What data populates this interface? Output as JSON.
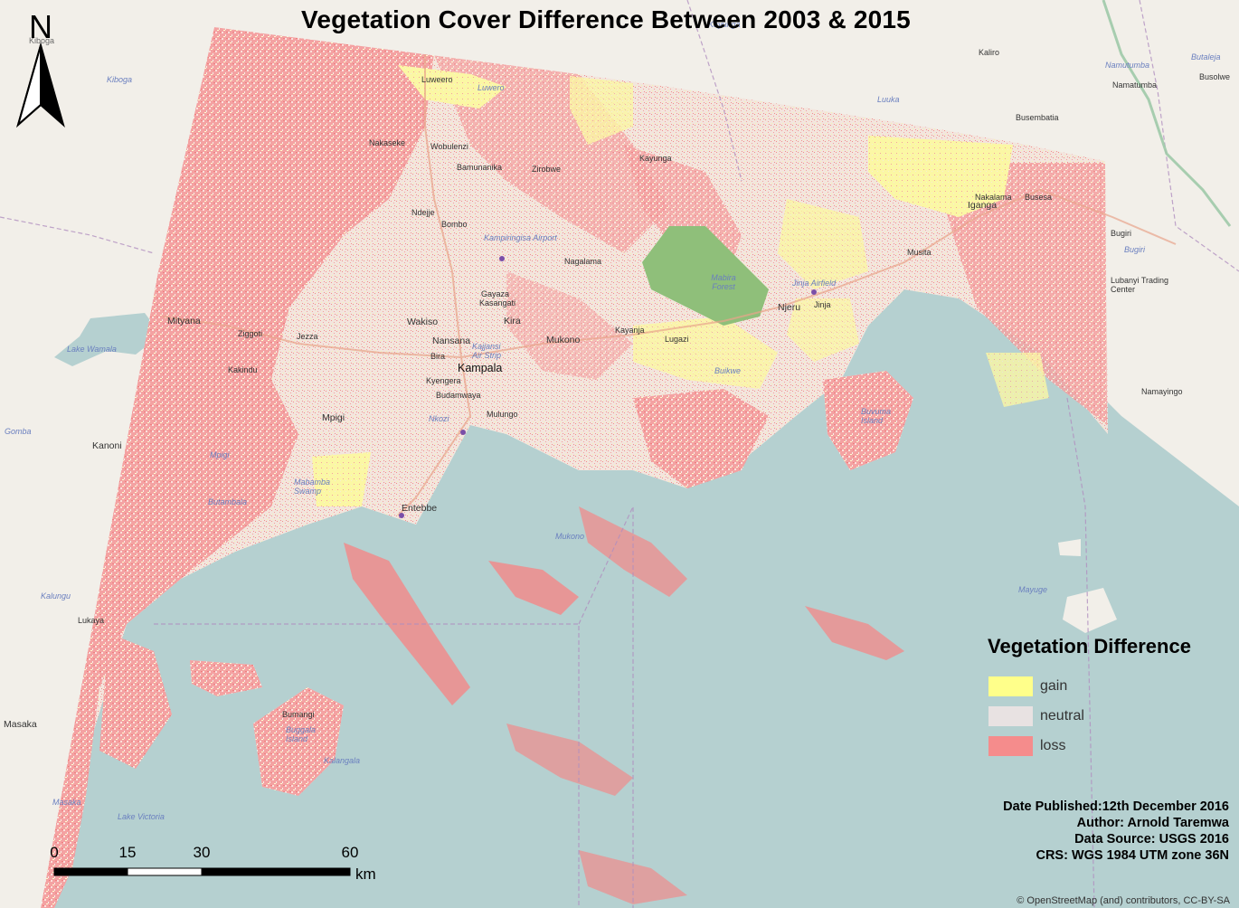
{
  "title": "Vegetation Cover Difference Between 2003 & 2015",
  "north_arrow": {
    "label": "N",
    "icon": "north-arrow-icon"
  },
  "legend": {
    "title": "Vegetation Difference",
    "items": [
      {
        "label": "gain",
        "color": "#ffff8a"
      },
      {
        "label": "neutral",
        "color": "#e8e2e2"
      },
      {
        "label": "loss",
        "color": "#f58c8c"
      }
    ]
  },
  "metadata": {
    "date_published": "Date Published:12th December 2016",
    "author": "Author: Arnold Taremwa",
    "data_source": "Data Source: USGS 2016",
    "crs": "CRS: WGS 1984 UTM zone 36N"
  },
  "scale_bar": {
    "ticks": [
      "0",
      "15",
      "30",
      "60"
    ],
    "unit": "km"
  },
  "attribution": "© OpenStreetMap (and) contributors, CC-BY-SA",
  "colors": {
    "lake": "#b5d0d0",
    "land": "#f2efe9",
    "loss": "#f58c8c",
    "gain": "#ffff8a",
    "forest": "#8fbf7a"
  },
  "places": {
    "kiboga_top": "Kiboga",
    "kiboga": "Kiboga",
    "luwero": "Luwero",
    "luwero2": "Luweero",
    "kayunga_r": "Kayunga",
    "kaliro": "Kaliro",
    "namutumba_r": "Namutumba",
    "namutumba": "Namatumba",
    "butaleja": "Butaleja",
    "busolwe": "Busolwe",
    "luuka": "Luuka",
    "busembatia": "Busembatia",
    "nakaseke": "Nakaseke",
    "wobulenzi": "Wobulenzi",
    "bamunanika": "Bamunanika",
    "zirobwe": "Zirobwe",
    "kayunga": "Kayunga",
    "nakalama": "Nakalama",
    "busesa": "Busesa",
    "iganga": "Iganga",
    "ndejje": "Ndejje",
    "bombo": "Bombo",
    "bugiri": "Bugiri",
    "bugiri_r": "Bugiri",
    "kampiringisa": "Kampiringisa Airport",
    "nagalama": "Nagalama",
    "mabira": "Mabira Forest",
    "musita": "Musita",
    "lubanyi": "Lubanyi Trading Center",
    "jinja_af": "Jinja Airfield",
    "njeru": "Njeru",
    "jinja": "Jinja",
    "mityana": "Mityana",
    "ziggoti": "Ziggoti",
    "gayaza": "Gayaza",
    "kasangati": "Kasangati",
    "kira": "Kira",
    "wakiso": "Wakiso",
    "nansana": "Nansana",
    "mukono": "Mukono",
    "kayanja": "Kayanja",
    "lugazi": "Lugazi",
    "buikwe": "Buikwe",
    "jeeza": "Jezza",
    "bira": "Bira",
    "kampala": "Kampala",
    "kajjansi": "Kajjansi Air Strip",
    "kyengera": "Kyengera",
    "buddo": "Budamwaya",
    "lake_wamala": "Lake Wamala",
    "kakindu": "Kakindu",
    "mpigi": "Mpigi",
    "mulungo": "Mulungo",
    "nkozi": "Nkozi",
    "namayingo": "Namayingo",
    "buvuma": "Buvuma Island",
    "gomba": "Gomba",
    "kanoni": "Kanoni",
    "mpigi_r": "Mpigi",
    "mabamba": "Mabamba Swamp",
    "entebbe": "Entebbe",
    "mukono_r": "Mukono",
    "mayuge": "Mayuge",
    "kalungu": "Kalungu",
    "lukaya": "Lukaya",
    "bumangi": "Bumangi",
    "bugala": "Buggala Island",
    "masaka": "Masaka",
    "masaka_r": "Masaka",
    "lake_victoria": "Lake Victoria",
    "butambala": "Butambala",
    "bukulula": "Kalangala"
  }
}
